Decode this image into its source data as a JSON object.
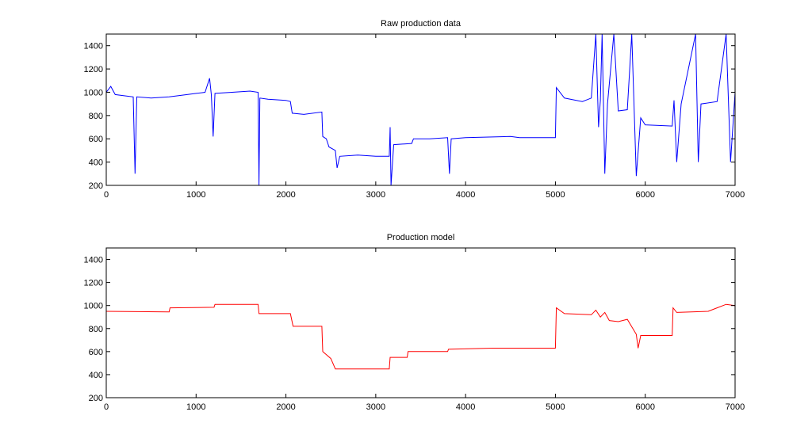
{
  "chart_data": [
    {
      "type": "line",
      "title": "Raw production data",
      "color": "#0000ff",
      "x": [
        0,
        50,
        100,
        200,
        300,
        320,
        340,
        500,
        700,
        900,
        1000,
        1100,
        1150,
        1170,
        1190,
        1210,
        1400,
        1600,
        1690,
        1700,
        1710,
        1800,
        2000,
        2050,
        2070,
        2200,
        2400,
        2410,
        2450,
        2480,
        2550,
        2570,
        2600,
        2800,
        3000,
        3150,
        3160,
        3170,
        3200,
        3400,
        3420,
        3600,
        3800,
        3820,
        3840,
        4000,
        4500,
        4600,
        5000,
        5010,
        5100,
        5300,
        5400,
        5450,
        5480,
        5500,
        5520,
        5550,
        5580,
        5650,
        5700,
        5800,
        5850,
        5900,
        5950,
        6000,
        6300,
        6320,
        6350,
        6400,
        6560,
        6590,
        6620,
        6800,
        6900,
        6950,
        7000
      ],
      "values": [
        1000,
        1050,
        980,
        970,
        960,
        300,
        960,
        950,
        960,
        980,
        990,
        1000,
        1120,
        980,
        620,
        990,
        1000,
        1010,
        1000,
        200,
        950,
        940,
        930,
        920,
        820,
        810,
        830,
        620,
        600,
        530,
        500,
        350,
        450,
        460,
        450,
        450,
        700,
        200,
        550,
        560,
        600,
        600,
        610,
        300,
        600,
        610,
        620,
        610,
        610,
        1040,
        950,
        920,
        950,
        1500,
        700,
        930,
        1500,
        300,
        900,
        1500,
        840,
        850,
        1500,
        280,
        780,
        720,
        710,
        930,
        400,
        900,
        1500,
        400,
        900,
        920,
        1500,
        400,
        1000
      ],
      "xlim": [
        0,
        7000
      ],
      "xticks": [
        0,
        1000,
        2000,
        3000,
        4000,
        5000,
        6000,
        7000
      ],
      "ylim": [
        200,
        1500
      ],
      "yticks": [
        200,
        400,
        600,
        800,
        1000,
        1200,
        1400
      ]
    },
    {
      "type": "line",
      "title": "Production model",
      "color": "#ff0000",
      "x": [
        0,
        700,
        710,
        1200,
        1210,
        1690,
        1700,
        2050,
        2080,
        2400,
        2410,
        2500,
        2550,
        3150,
        3160,
        3350,
        3360,
        3800,
        3810,
        4300,
        5000,
        5010,
        5100,
        5400,
        5450,
        5500,
        5550,
        5600,
        5700,
        5800,
        5900,
        5920,
        5950,
        6300,
        6310,
        6350,
        6700,
        6800,
        6900,
        7000
      ],
      "values": [
        950,
        945,
        980,
        985,
        1010,
        1010,
        930,
        930,
        820,
        820,
        600,
        540,
        450,
        450,
        550,
        550,
        600,
        600,
        620,
        630,
        630,
        980,
        930,
        920,
        960,
        900,
        940,
        870,
        860,
        880,
        750,
        630,
        740,
        740,
        980,
        940,
        950,
        980,
        1010,
        1000
      ],
      "xlim": [
        0,
        7000
      ],
      "xticks": [
        0,
        1000,
        2000,
        3000,
        4000,
        5000,
        6000,
        7000
      ],
      "ylim": [
        200,
        1500
      ],
      "yticks": [
        200,
        400,
        600,
        800,
        1000,
        1200,
        1400
      ]
    }
  ]
}
